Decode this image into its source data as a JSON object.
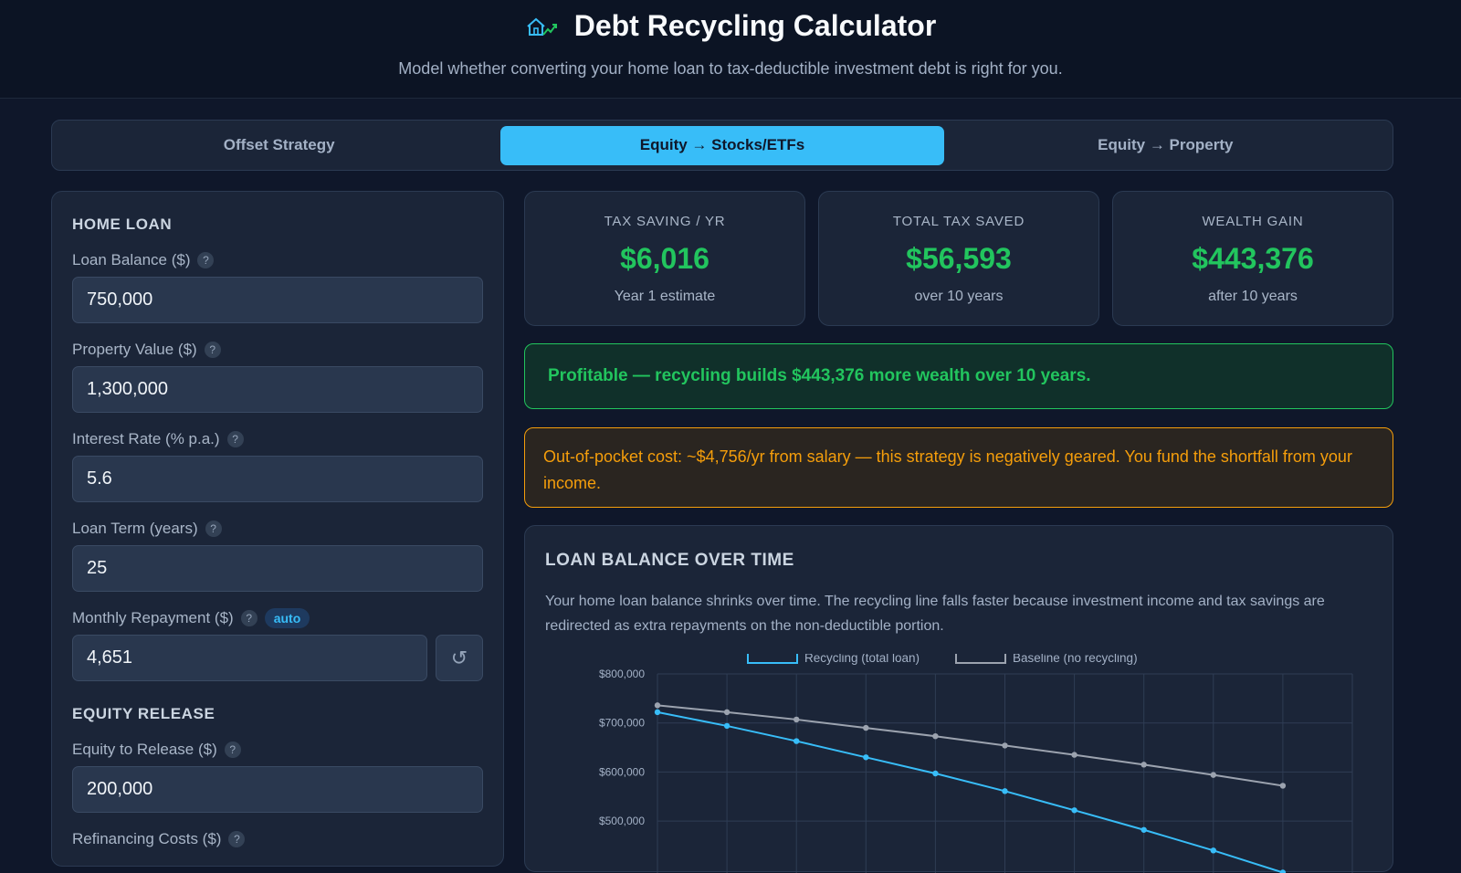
{
  "header": {
    "title": "Debt Recycling Calculator",
    "subtitle": "Model whether converting your home loan to tax-deductible investment debt is right for you.",
    "logo_icon": "house-chart-icon"
  },
  "tabs": [
    {
      "label": "Offset Strategy",
      "active": false
    },
    {
      "label": "Equity → Stocks/ETFs",
      "active": true
    },
    {
      "label": "Equity → Property",
      "active": false
    }
  ],
  "form": {
    "home_loan_heading": "HOME LOAN",
    "loan_balance": {
      "label": "Loan Balance ($)",
      "value": "750,000"
    },
    "property_value": {
      "label": "Property Value ($)",
      "value": "1,300,000"
    },
    "interest_rate": {
      "label": "Interest Rate (% p.a.)",
      "value": "5.6"
    },
    "loan_term": {
      "label": "Loan Term (years)",
      "value": "25"
    },
    "monthly_repayment": {
      "label": "Monthly Repayment ($)",
      "value": "4,651",
      "badge": "auto",
      "reset_icon": "↺"
    },
    "equity_heading": "EQUITY RELEASE",
    "equity_release": {
      "label": "Equity to Release ($)",
      "value": "200,000"
    },
    "refinancing_costs": {
      "label": "Refinancing Costs ($)"
    },
    "help_glyph": "?"
  },
  "stats": [
    {
      "label": "TAX SAVING / YR",
      "value": "$6,016",
      "note": "Year 1 estimate"
    },
    {
      "label": "TOTAL TAX SAVED",
      "value": "$56,593",
      "note": "over 10 years"
    },
    {
      "label": "WEALTH GAIN",
      "value": "$443,376",
      "note": "after 10 years"
    }
  ],
  "alerts": {
    "profit": "Profitable — recycling builds $443,376 more wealth over 10 years.",
    "cost": "Out-of-pocket cost: ~$4,756/yr from salary — this strategy is negatively geared. You fund the shortfall from your income."
  },
  "chart": {
    "title": "LOAN BALANCE OVER TIME",
    "description": "Your home loan balance shrinks over time. The recycling line falls faster because investment income and tax savings are redirected as extra repayments on the non-deductible portion."
  },
  "chart_data": {
    "type": "line",
    "legend_position": "top",
    "x": [
      0,
      1,
      2,
      3,
      4,
      5,
      6,
      7,
      8,
      9
    ],
    "y_ticks": [
      "$800,000",
      "$700,000",
      "$600,000",
      "$500,000"
    ],
    "y_tick_values": [
      800000,
      700000,
      600000,
      500000
    ],
    "ylim": [
      450000,
      800000
    ],
    "grid": true,
    "series": [
      {
        "name": "Recycling (total loan)",
        "color": "#38bdf8",
        "values": [
          722000,
          694000,
          663000,
          630000,
          597000,
          561000,
          522000,
          482000,
          440000,
          395000
        ]
      },
      {
        "name": "Baseline (no recycling)",
        "color": "#9ca3af",
        "values": [
          736000,
          722000,
          707000,
          690000,
          673000,
          654000,
          635000,
          615000,
          594000,
          572000
        ]
      }
    ]
  }
}
